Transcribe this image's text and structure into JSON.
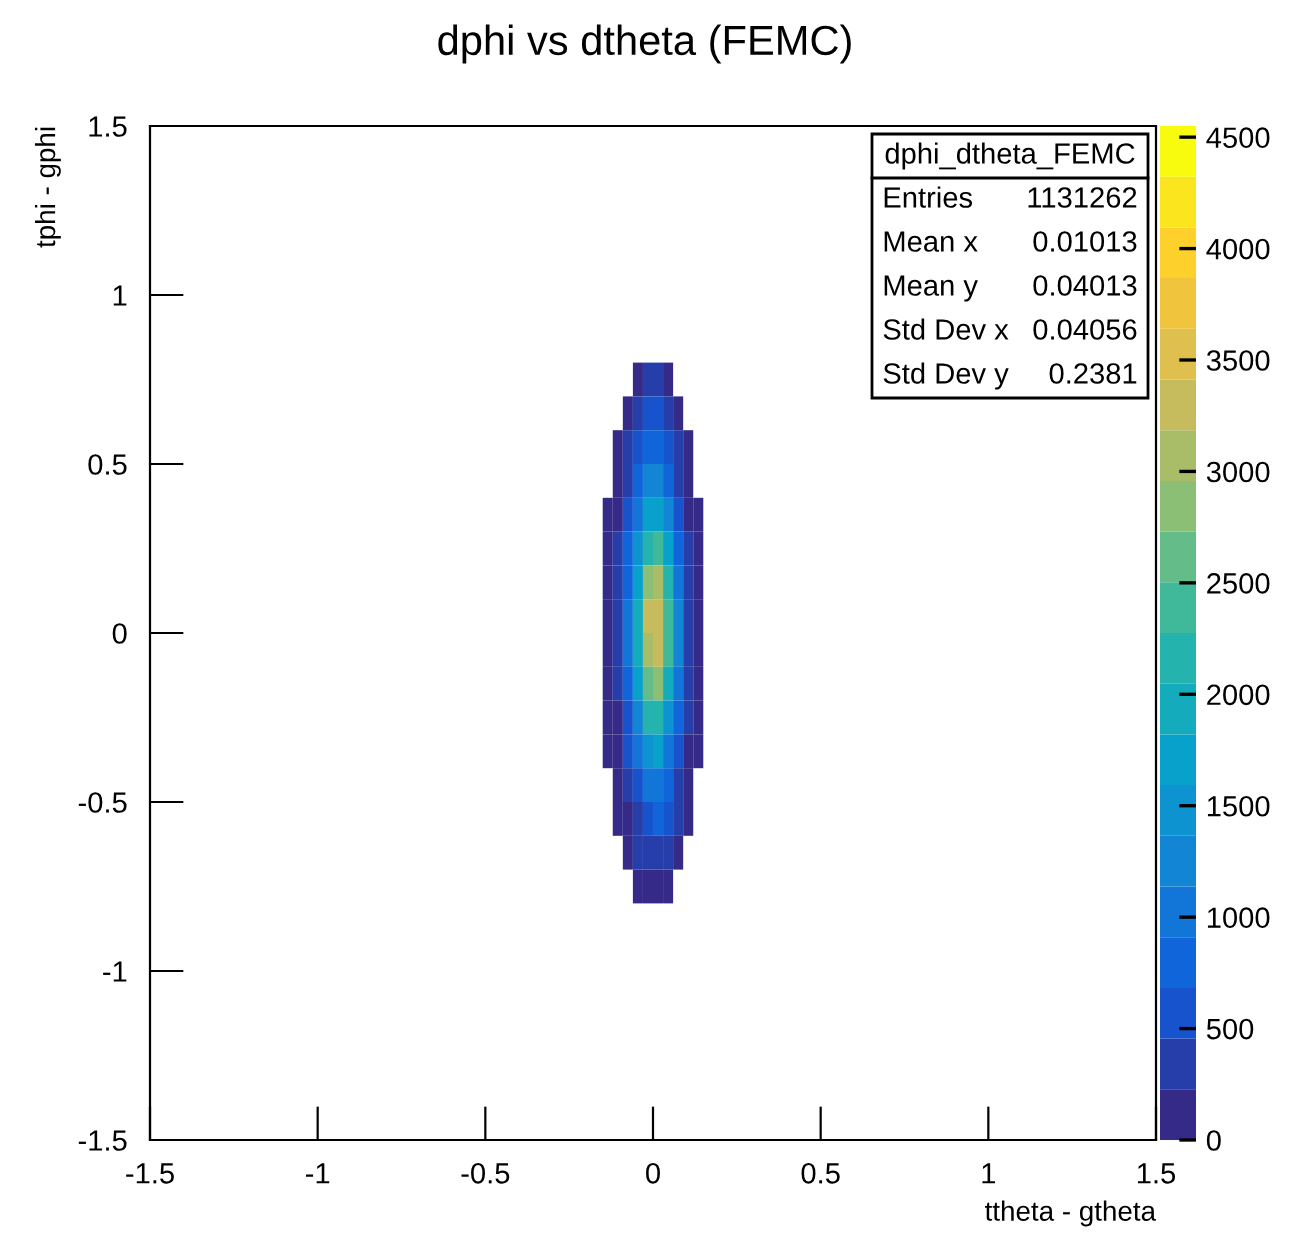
{
  "chart_data": {
    "type": "heatmap",
    "title": "dphi vs dtheta (FEMC)",
    "xlabel": "ttheta - gtheta",
    "ylabel": "tphi - gphi",
    "x": [
      -0.135,
      -0.105,
      -0.075,
      -0.045,
      -0.015,
      0.015,
      0.045,
      0.075,
      0.105,
      0.135
    ],
    "y": [
      0.75,
      0.65,
      0.55,
      0.45,
      0.35,
      0.25,
      0.15,
      0.05,
      -0.05,
      -0.15,
      -0.25,
      -0.35,
      -0.45,
      -0.55,
      -0.65,
      -0.75
    ],
    "cells": [
      [
        null,
        null,
        null,
        80,
        240,
        250,
        170,
        null,
        null,
        null
      ],
      [
        null,
        null,
        150,
        300,
        475,
        500,
        350,
        170,
        null,
        null
      ],
      [
        null,
        80,
        240,
        480,
        760,
        800,
        560,
        280,
        100,
        null
      ],
      [
        null,
        120,
        360,
        720,
        1140,
        1200,
        840,
        420,
        140,
        null
      ],
      [
        90,
        170,
        510,
        1020,
        1620,
        1700,
        1190,
        600,
        200,
        90
      ],
      [
        110,
        230,
        690,
        1380,
        2190,
        2300,
        1610,
        800,
        280,
        110
      ],
      [
        150,
        300,
        900,
        1800,
        2850,
        3000,
        2100,
        1050,
        360,
        150
      ],
      [
        170,
        340,
        1020,
        2040,
        3230,
        3400,
        2380,
        1190,
        410,
        170
      ],
      [
        160,
        330,
        990,
        1980,
        3140,
        3300,
        2310,
        1150,
        400,
        160
      ],
      [
        140,
        280,
        840,
        1680,
        2660,
        2800,
        1960,
        980,
        340,
        140
      ],
      [
        110,
        220,
        660,
        1320,
        2090,
        2200,
        1540,
        770,
        260,
        110
      ],
      [
        80,
        160,
        480,
        960,
        1520,
        1600,
        1120,
        560,
        190,
        80
      ],
      [
        null,
        110,
        330,
        660,
        1050,
        1100,
        770,
        390,
        130,
        null
      ],
      [
        null,
        70,
        210,
        420,
        670,
        700,
        490,
        250,
        90,
        null
      ],
      [
        null,
        null,
        140,
        270,
        430,
        450,
        320,
        160,
        null,
        null
      ],
      [
        null,
        null,
        null,
        120,
        190,
        200,
        140,
        null,
        null,
        null
      ]
    ],
    "xlim": [
      -1.5,
      1.5
    ],
    "ylim": [
      -1.5,
      1.5
    ],
    "xticks": [
      -1.5,
      -1,
      -0.5,
      0,
      0.5,
      1,
      1.5
    ],
    "yticks": [
      -1.5,
      -1,
      -0.5,
      0,
      0.5,
      1,
      1.5
    ],
    "clim": [
      0,
      4550
    ],
    "cticks": [
      0,
      500,
      1000,
      1500,
      2000,
      2500,
      3000,
      3500,
      4000,
      4500
    ],
    "grid": false,
    "annotations": [
      "dphi_dtheta_FEMC",
      "Entries",
      "1131262",
      "Mean x",
      "0.01013",
      "Mean y",
      "0.04013",
      "Std Dev x",
      "0.04056",
      "Std Dev y",
      "0.2381"
    ]
  }
}
